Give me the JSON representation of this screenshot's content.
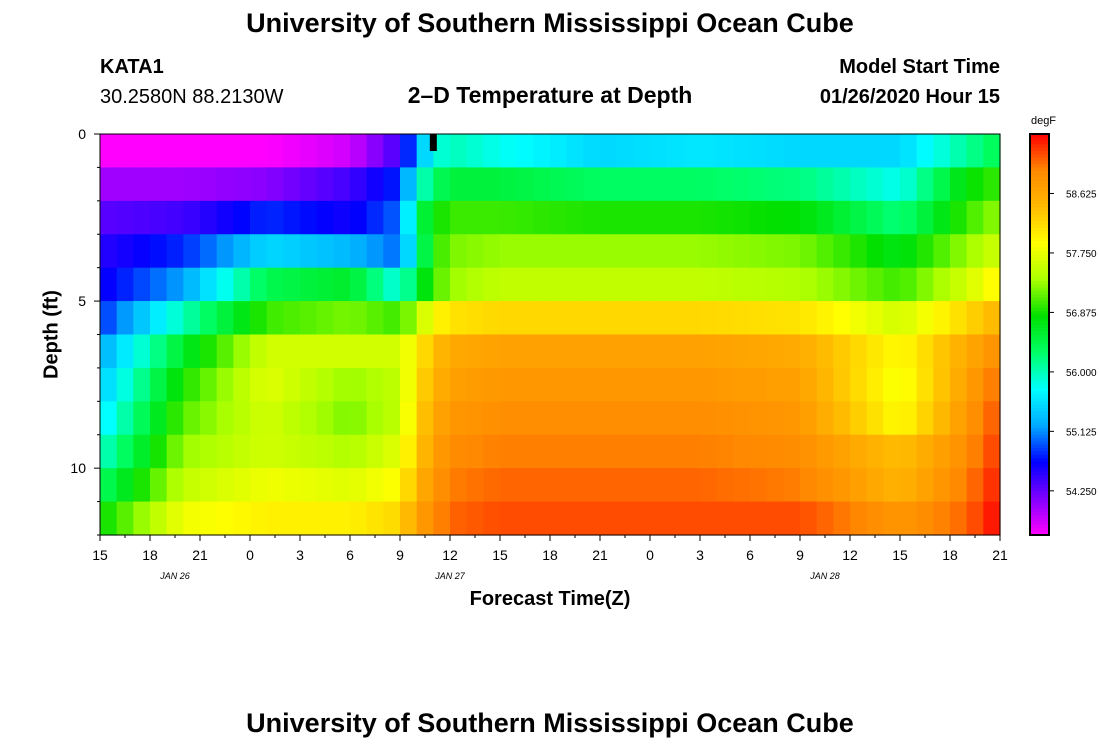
{
  "header": {
    "title": "University of Southern Mississippi Ocean Cube",
    "station": "KATA1",
    "location": "30.2580N 88.2130W",
    "plot_title": "2–D Temperature at Depth",
    "model_start_label": "Model Start Time",
    "model_start_value": "01/26/2020 Hour 15"
  },
  "footer": {
    "title": "University of Southern Mississippi Ocean Cube"
  },
  "chart_data": {
    "type": "heatmap",
    "xlabel": "Forecast Time(Z)",
    "ylabel": "Depth (ft)",
    "x_tick_labels": [
      "15",
      "18",
      "21",
      "0",
      "3",
      "6",
      "9",
      "12",
      "15",
      "18",
      "21",
      "0",
      "3",
      "6",
      "9",
      "12",
      "15",
      "18",
      "21"
    ],
    "date_labels": [
      {
        "label": "JAN  26",
        "hours_from_start": 4.5
      },
      {
        "label": "JAN  27",
        "hours_from_start": 21
      },
      {
        "label": "JAN  28",
        "hours_from_start": 43.5
      }
    ],
    "x_range_hours": [
      0,
      54
    ],
    "y_ticks": [
      0,
      5,
      10
    ],
    "y_range": [
      0,
      12
    ],
    "depth_levels_ft": [
      0.5,
      1.5,
      2.5,
      3.5,
      4.5,
      5.5,
      6.5,
      7.5,
      8.5,
      9.5,
      10.5,
      11.5
    ],
    "current_hour": 20,
    "colorbar": {
      "unit": "degF",
      "min": 53.6,
      "max": 59.5,
      "tick_values": [
        54.25,
        55.125,
        56.0,
        56.875,
        57.75,
        58.625
      ],
      "tick_labels": [
        "54.250",
        "55.125",
        "56.000",
        "56.875",
        "57.750",
        "58.625"
      ],
      "colors": [
        "#ff00ff",
        "#8000ff",
        "#0000ff",
        "#00aaff",
        "#00ffff",
        "#00ff66",
        "#00e000",
        "#aaff00",
        "#ffff00",
        "#ffbb00",
        "#ff8800",
        "#ff0000"
      ]
    },
    "series": [
      {
        "depth": 0.5,
        "hours": [
          0,
          5,
          10,
          15,
          18,
          19,
          20,
          21,
          24,
          30,
          36,
          42,
          48,
          52,
          54
        ],
        "values": [
          53.6,
          53.6,
          53.6,
          53.8,
          54.4,
          55.2,
          55.8,
          56.0,
          55.8,
          55.5,
          55.6,
          55.5,
          55.5,
          56.1,
          56.4
        ]
      },
      {
        "depth": 1.5,
        "hours": [
          0,
          5,
          10,
          15,
          18,
          19,
          20,
          21,
          24,
          30,
          36,
          42,
          48,
          52,
          54
        ],
        "values": [
          54.0,
          54.0,
          54.1,
          54.4,
          54.8,
          55.8,
          56.3,
          56.5,
          56.5,
          56.3,
          56.3,
          56.2,
          55.8,
          56.8,
          57.0
        ]
      },
      {
        "depth": 2.5,
        "hours": [
          0,
          5,
          10,
          15,
          18,
          19,
          20,
          21,
          24,
          30,
          36,
          42,
          48,
          52,
          54
        ],
        "values": [
          54.3,
          54.4,
          54.8,
          54.6,
          55.0,
          56.3,
          56.8,
          57.0,
          57.0,
          56.9,
          56.9,
          56.8,
          56.2,
          57.0,
          57.3
        ]
      },
      {
        "depth": 3.5,
        "hours": [
          0,
          5,
          10,
          15,
          18,
          19,
          20,
          21,
          24,
          30,
          36,
          42,
          48,
          52,
          54
        ],
        "values": [
          54.5,
          54.8,
          55.5,
          55.3,
          55.0,
          56.0,
          56.9,
          57.2,
          57.3,
          57.3,
          57.3,
          57.2,
          56.7,
          57.3,
          57.6
        ]
      },
      {
        "depth": 4.5,
        "hours": [
          0,
          5,
          10,
          15,
          18,
          19,
          20,
          21,
          24,
          30,
          36,
          42,
          48,
          52,
          54
        ],
        "values": [
          54.6,
          55.2,
          56.4,
          56.6,
          55.8,
          56.5,
          57.0,
          57.3,
          57.5,
          57.5,
          57.5,
          57.4,
          57.0,
          57.6,
          58.0
        ]
      },
      {
        "depth": 5.5,
        "hours": [
          0,
          5,
          10,
          15,
          18,
          19,
          20,
          21,
          24,
          30,
          36,
          42,
          48,
          52,
          54
        ],
        "values": [
          54.8,
          56.0,
          57.0,
          57.2,
          57.0,
          57.4,
          57.9,
          58.1,
          58.2,
          58.2,
          58.2,
          58.1,
          57.6,
          58.2,
          58.5
        ]
      },
      {
        "depth": 6.5,
        "hours": [
          0,
          5,
          10,
          15,
          18,
          19,
          20,
          21,
          24,
          30,
          36,
          42,
          48,
          52,
          54
        ],
        "values": [
          55.2,
          56.6,
          57.6,
          57.6,
          57.6,
          58.0,
          58.4,
          58.6,
          58.7,
          58.7,
          58.7,
          58.6,
          57.9,
          58.6,
          58.9
        ]
      },
      {
        "depth": 7.5,
        "hours": [
          0,
          5,
          10,
          15,
          18,
          19,
          20,
          21,
          24,
          30,
          36,
          42,
          48,
          52,
          54
        ],
        "values": [
          55.4,
          56.9,
          57.7,
          57.3,
          57.5,
          58.1,
          58.5,
          58.7,
          58.8,
          58.8,
          58.8,
          58.7,
          57.8,
          58.7,
          59.1
        ]
      },
      {
        "depth": 8.5,
        "hours": [
          0,
          5,
          10,
          15,
          18,
          19,
          20,
          21,
          24,
          30,
          36,
          42,
          48,
          52,
          54
        ],
        "values": [
          55.6,
          57.1,
          57.6,
          57.2,
          57.5,
          58.2,
          58.6,
          58.8,
          58.9,
          58.9,
          58.9,
          58.8,
          57.9,
          58.8,
          59.2
        ]
      },
      {
        "depth": 9.5,
        "hours": [
          0,
          5,
          10,
          15,
          18,
          19,
          20,
          21,
          24,
          30,
          36,
          42,
          48,
          52,
          54
        ],
        "values": [
          55.9,
          57.3,
          57.6,
          57.4,
          57.7,
          58.3,
          58.7,
          58.9,
          59.0,
          59.0,
          59.0,
          58.9,
          58.4,
          58.9,
          59.3
        ]
      },
      {
        "depth": 10.5,
        "hours": [
          0,
          5,
          10,
          15,
          18,
          19,
          20,
          21,
          24,
          30,
          36,
          42,
          48,
          52,
          54
        ],
        "values": [
          56.3,
          57.5,
          57.8,
          57.7,
          57.9,
          58.5,
          58.8,
          59.0,
          59.1,
          59.1,
          59.1,
          59.0,
          58.5,
          59.0,
          59.4
        ]
      },
      {
        "depth": 11.5,
        "hours": [
          0,
          5,
          10,
          15,
          18,
          19,
          20,
          21,
          24,
          30,
          36,
          42,
          48,
          52,
          54
        ],
        "values": [
          56.8,
          57.8,
          58.0,
          58.0,
          58.2,
          58.7,
          58.9,
          59.1,
          59.2,
          59.2,
          59.2,
          59.2,
          58.8,
          59.1,
          59.5
        ]
      }
    ]
  }
}
